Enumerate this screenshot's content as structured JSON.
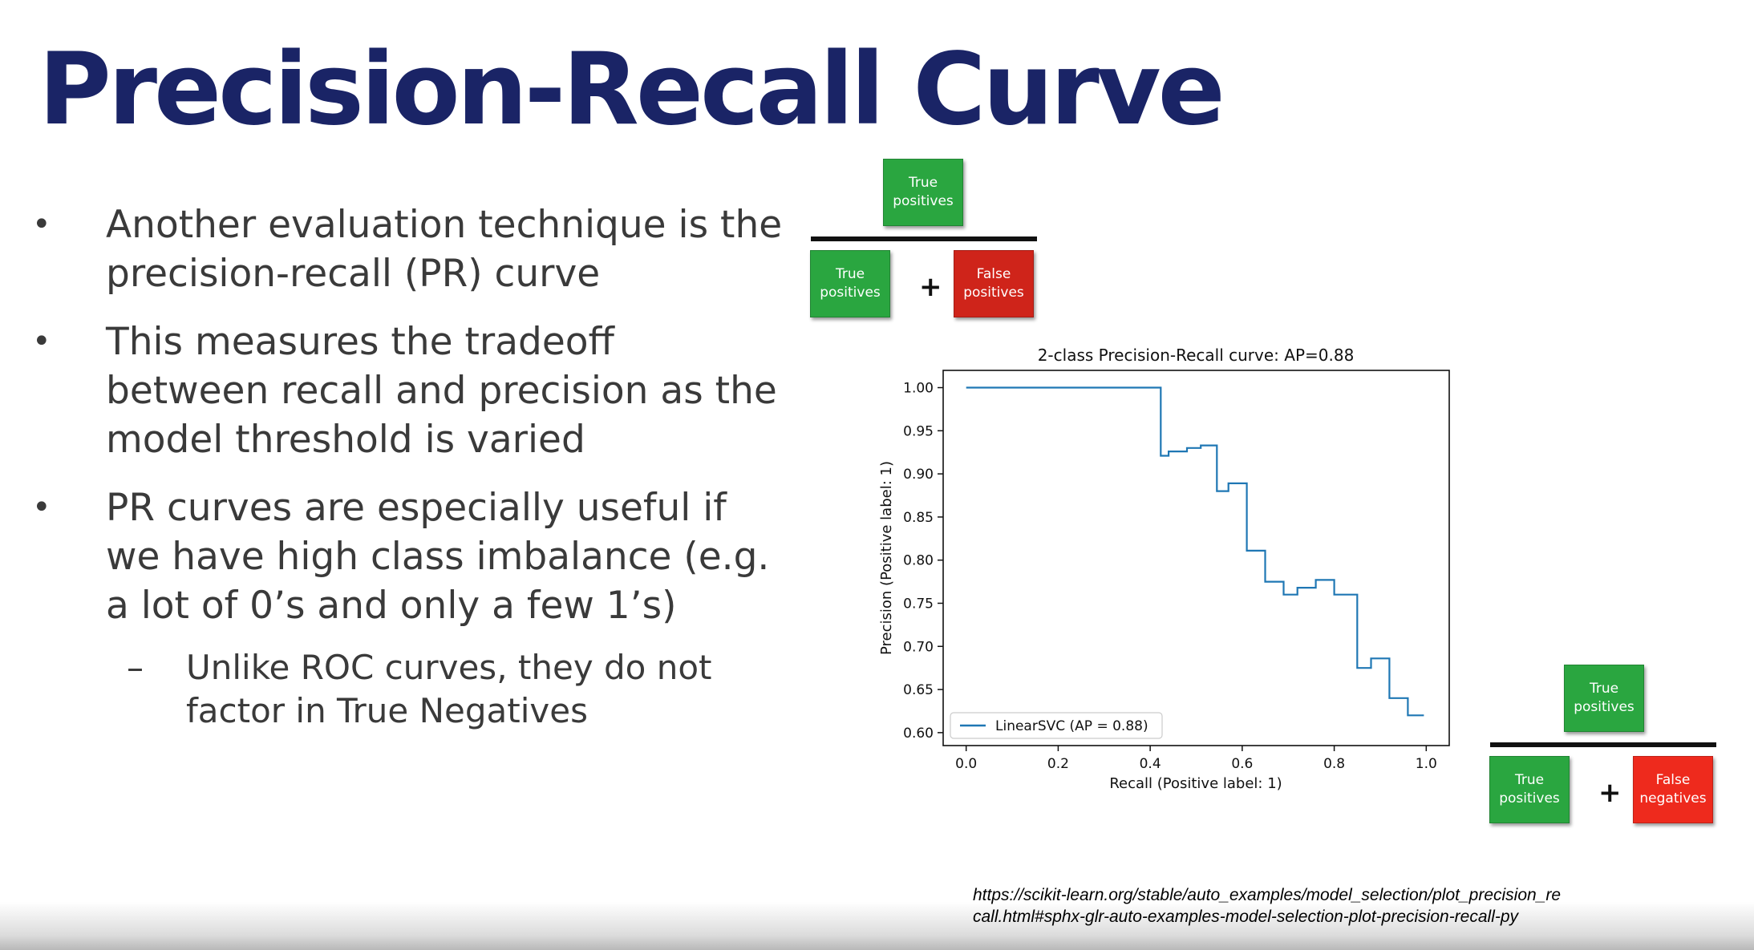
{
  "slide": {
    "title": "Precision-Recall Curve",
    "bullets": [
      {
        "marker": "•",
        "text": "Another evaluation technique is the precision-recall (PR) curve"
      },
      {
        "marker": "•",
        "text": "This measures the tradeoff between recall and precision as the model threshold is varied"
      },
      {
        "marker": "•",
        "text": "PR curves are especially useful if we have high class imbalance (e.g. a lot of 0’s and only a few 1’s)"
      }
    ],
    "sub_bullet": {
      "marker": "–",
      "text": "Unlike ROC curves, they do not factor in True Negatives"
    },
    "url": "https://scikit-learn.org/stable/auto_examples/model_selection/plot_precision_recall.html#sphx-glr-auto-examples-model-selection-plot-precision-recall-py"
  },
  "precision_formula": {
    "numerator": "True\npositives",
    "denominator_left": "True\npositives",
    "operator": "+",
    "denominator_right": "False\npositives"
  },
  "recall_formula": {
    "numerator": "True\npositives",
    "denominator_left": "True\npositives",
    "operator": "+",
    "denominator_right": "False\nnegatives"
  },
  "colors": {
    "title": "#1a2466",
    "true_positive_box": "#2aa640",
    "false_positive_box": "#cf241a",
    "false_negative_box": "#ee2a1d",
    "curve": "#1f77b4"
  },
  "chart_data": {
    "type": "line",
    "title": "2-class Precision-Recall curve: AP=0.88",
    "xlabel": "Recall (Positive label: 1)",
    "ylabel": "Precision (Positive label: 1)",
    "xlim": [
      -0.05,
      1.05
    ],
    "ylim": [
      0.585,
      1.02
    ],
    "xticks": [
      0.0,
      0.2,
      0.4,
      0.6,
      0.8,
      1.0
    ],
    "xtick_labels": [
      "0.0",
      "0.2",
      "0.4",
      "0.6",
      "0.8",
      "1.0"
    ],
    "yticks": [
      0.6,
      0.65,
      0.7,
      0.75,
      0.8,
      0.85,
      0.9,
      0.95,
      1.0
    ],
    "ytick_labels": [
      "0.60",
      "0.65",
      "0.70",
      "0.75",
      "0.80",
      "0.85",
      "0.90",
      "0.95",
      "1.00"
    ],
    "grid": false,
    "legend_position": "lower-left",
    "series": [
      {
        "name": "LinearSVC (AP = 0.88)",
        "drawstyle": "steps",
        "points": [
          [
            0.0,
            1.0
          ],
          [
            0.423,
            1.0
          ],
          [
            0.423,
            0.921
          ],
          [
            0.44,
            0.921
          ],
          [
            0.44,
            0.926
          ],
          [
            0.48,
            0.926
          ],
          [
            0.48,
            0.93
          ],
          [
            0.51,
            0.93
          ],
          [
            0.51,
            0.933
          ],
          [
            0.545,
            0.933
          ],
          [
            0.545,
            0.88
          ],
          [
            0.57,
            0.88
          ],
          [
            0.57,
            0.889
          ],
          [
            0.61,
            0.889
          ],
          [
            0.61,
            0.811
          ],
          [
            0.65,
            0.811
          ],
          [
            0.65,
            0.775
          ],
          [
            0.69,
            0.775
          ],
          [
            0.69,
            0.76
          ],
          [
            0.72,
            0.76
          ],
          [
            0.72,
            0.768
          ],
          [
            0.76,
            0.768
          ],
          [
            0.76,
            0.777
          ],
          [
            0.8,
            0.777
          ],
          [
            0.8,
            0.76
          ],
          [
            0.85,
            0.76
          ],
          [
            0.85,
            0.675
          ],
          [
            0.88,
            0.675
          ],
          [
            0.88,
            0.686
          ],
          [
            0.92,
            0.686
          ],
          [
            0.92,
            0.64
          ],
          [
            0.96,
            0.64
          ],
          [
            0.96,
            0.62
          ],
          [
            0.995,
            0.62
          ]
        ]
      }
    ]
  }
}
